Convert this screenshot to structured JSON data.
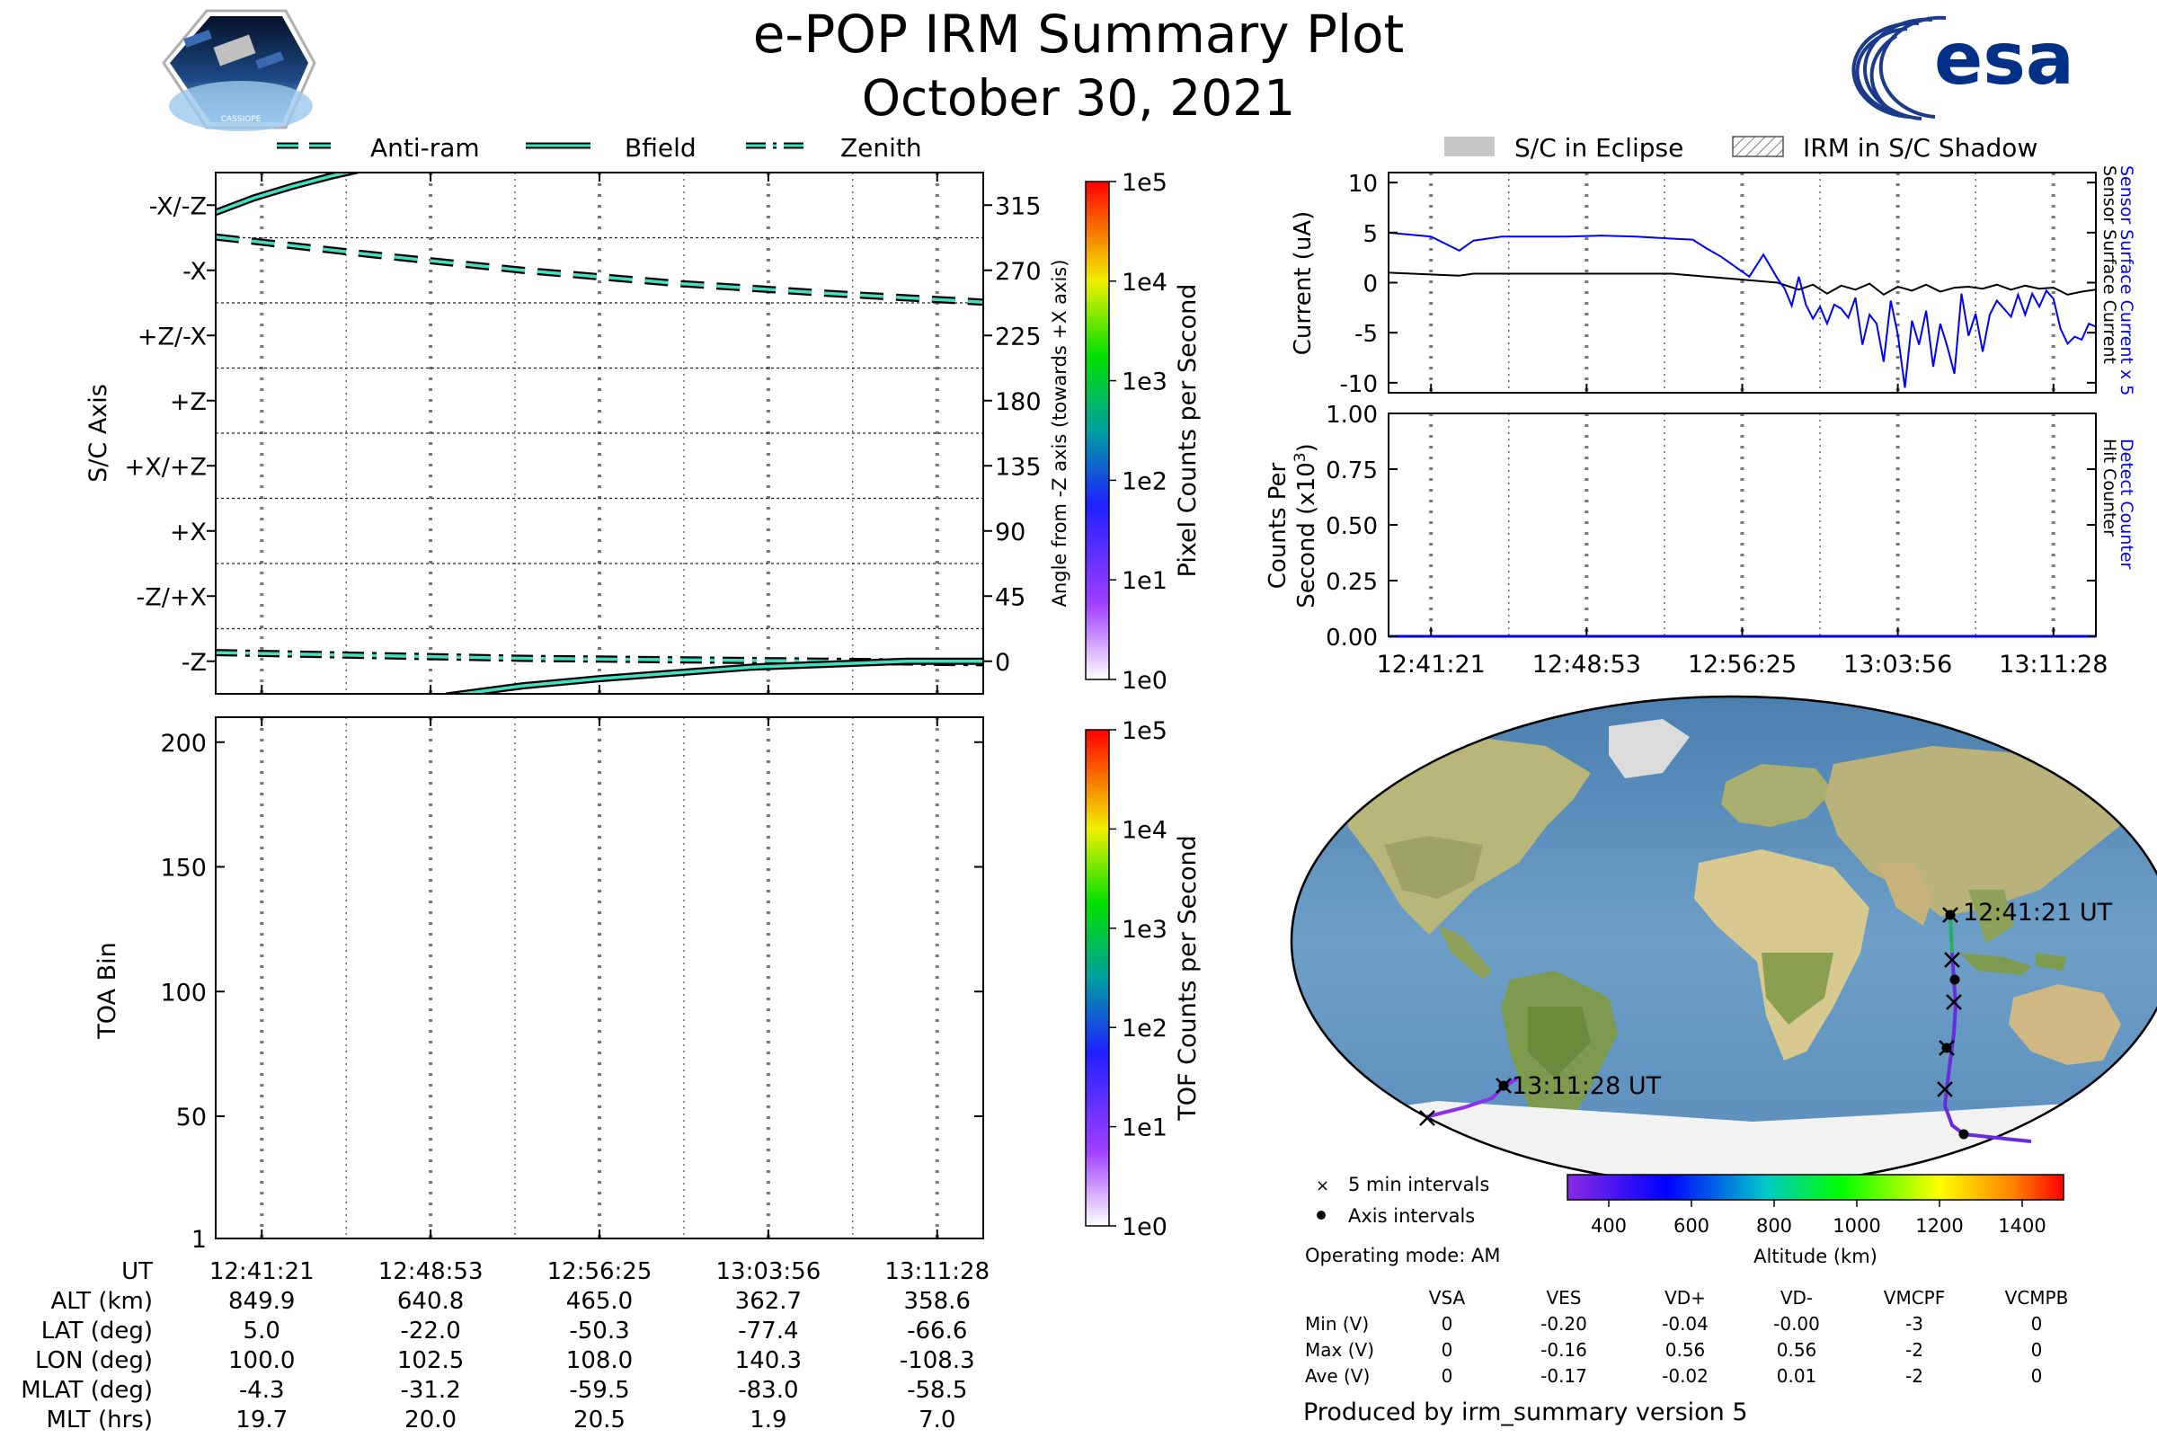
{
  "header": {
    "title": "e-POP IRM Summary Plot",
    "date": "October 30, 2021",
    "mission_logo_text": "CASSIOPE",
    "esa_logo_text": "esa"
  },
  "legend_top_left": [
    {
      "label": "Anti-ram",
      "style": "dashed"
    },
    {
      "label": "Bfield",
      "style": "solid"
    },
    {
      "label": "Zenith",
      "style": "dashdot"
    }
  ],
  "legend_top_right": [
    {
      "label": "S/C in Eclipse",
      "swatch": "gray"
    },
    {
      "label": "IRM in S/C Shadow",
      "swatch": "hatched"
    }
  ],
  "colors": {
    "trace_outline": "#000000",
    "trace_fill": "#40e0c0",
    "sensor_current": "#0000ff",
    "hit_counter": "#000000"
  },
  "time_ticks": [
    "12:41:21",
    "12:48:53",
    "12:56:25",
    "13:03:56",
    "13:11:28"
  ],
  "chart_data": [
    {
      "id": "sc_axis",
      "type": "line",
      "ylabel": "S/C Axis",
      "y2label": "Angle from -Z axis (towards +X axis)",
      "axis_labels": [
        "-X/-Z",
        "-X",
        "+Z/-X",
        "+Z",
        "+X/+Z",
        "+X",
        "-Z/+X",
        "-Z"
      ],
      "y2_ticks": [
        "315",
        "270",
        "225",
        "180",
        "135",
        "90",
        "45",
        "0"
      ],
      "ylim": [
        -22.5,
        337.5
      ],
      "x": [
        0,
        0.2,
        0.4,
        0.6,
        0.8,
        1.0
      ],
      "series": [
        {
          "name": "Anti-ram",
          "style": "dashed",
          "values": [
            293,
            281,
            270,
            261,
            254,
            248
          ]
        },
        {
          "name": "Zenith",
          "style": "dashdot",
          "values": [
            6,
            4,
            2,
            1,
            0,
            -1
          ]
        },
        {
          "name": "Bfield",
          "style": "solid",
          "x": [
            0,
            0.05,
            0.1,
            0.15,
            0.2,
            0.25,
            0.3
          ],
          "values": [
            310,
            320,
            328,
            335,
            341,
            345,
            349
          ]
        },
        {
          "name": "Bfield",
          "style": "solid",
          "x": [
            0.3,
            0.4,
            0.5,
            0.6,
            0.7,
            0.8,
            0.9,
            1.0
          ],
          "values": [
            -24,
            -17,
            -12,
            -8,
            -4,
            -2,
            0,
            0
          ]
        }
      ],
      "colorbar": {
        "label": "Pixel Counts per Second",
        "ticks": [
          "1e5",
          "1e4",
          "1e3",
          "1e2",
          "1e1",
          "1e0"
        ]
      }
    },
    {
      "id": "toa",
      "type": "heatmap",
      "ylabel": "TOA Bin",
      "ylim": [
        1,
        210
      ],
      "y_ticks": [
        "1",
        "50",
        "100",
        "150",
        "200"
      ],
      "colorbar": {
        "label": "TOF Counts per Second",
        "ticks": [
          "1e5",
          "1e4",
          "1e3",
          "1e2",
          "1e1",
          "1e0"
        ]
      }
    },
    {
      "id": "current",
      "type": "line",
      "ylabel": "Current (uA)",
      "ylim": [
        -11,
        11
      ],
      "y_ticks": [
        "10",
        "5",
        "0",
        "-5",
        "-10"
      ],
      "right_labels": [
        {
          "text": "Sensor Surface Current x 5",
          "color": "#0000ff"
        },
        {
          "text": "Sensor Surface Current",
          "color": "#000000"
        }
      ],
      "series": [
        {
          "name": "Sensor Surface Current x 5",
          "color": "#0000ff",
          "x": [
            0,
            0.06,
            0.1,
            0.12,
            0.16,
            0.2,
            0.25,
            0.3,
            0.35,
            0.4,
            0.43,
            0.45,
            0.47,
            0.49,
            0.51,
            0.53,
            0.55,
            0.56,
            0.57,
            0.58,
            0.59,
            0.6,
            0.61,
            0.62,
            0.63,
            0.64,
            0.65,
            0.66,
            0.67,
            0.68,
            0.69,
            0.7,
            0.71,
            0.72,
            0.73,
            0.74,
            0.75,
            0.76,
            0.77,
            0.78,
            0.79,
            0.8,
            0.81,
            0.82,
            0.83,
            0.84,
            0.85,
            0.86,
            0.87,
            0.88,
            0.89,
            0.9,
            0.91,
            0.92,
            0.93,
            0.94,
            0.95,
            0.96,
            0.97,
            0.98,
            0.99,
            1.0
          ],
          "values": [
            5,
            4.6,
            3.2,
            4.2,
            4.6,
            4.6,
            4.6,
            4.7,
            4.6,
            4.4,
            4.3,
            3.4,
            2.6,
            1.6,
            0.6,
            2.8,
            0.4,
            -0.6,
            -2.3,
            0.6,
            -2.2,
            -3.6,
            -2.4,
            -4.1,
            -2.2,
            -2.6,
            -3.5,
            -1.5,
            -6.2,
            -3.2,
            -4.1,
            -7.9,
            -1.8,
            -5.2,
            -10.5,
            -3.8,
            -6.2,
            -2.8,
            -8.4,
            -4.1,
            -6.4,
            -9.1,
            -1.1,
            -5.3,
            -3.1,
            -6.9,
            -3.2,
            -1.8,
            -2.6,
            -3.4,
            -1.2,
            -3.2,
            -1.1,
            -2.4,
            -0.8,
            -1.6,
            -4.6,
            -6.1,
            -5.4,
            -5.7,
            -4.1,
            -4.4
          ]
        },
        {
          "name": "Sensor Surface Current",
          "color": "#000000",
          "x": [
            0,
            0.1,
            0.12,
            0.2,
            0.3,
            0.4,
            0.45,
            0.5,
            0.55,
            0.58,
            0.6,
            0.62,
            0.64,
            0.66,
            0.68,
            0.7,
            0.72,
            0.74,
            0.76,
            0.78,
            0.8,
            0.82,
            0.84,
            0.86,
            0.88,
            0.9,
            0.92,
            0.94,
            0.96,
            0.98,
            1.0
          ],
          "values": [
            1,
            0.7,
            0.9,
            0.9,
            0.9,
            0.9,
            0.6,
            0.3,
            0,
            -0.7,
            -0.2,
            -1.1,
            -0.3,
            -0.7,
            -0.1,
            -1.2,
            -0.4,
            -0.8,
            -0.2,
            -0.9,
            -0.5,
            -0.4,
            -0.6,
            -0.2,
            -0.7,
            -0.3,
            -0.6,
            -0.5,
            -1.2,
            -0.9,
            -0.7
          ]
        }
      ]
    },
    {
      "id": "counts",
      "type": "line",
      "ylabel_line1": "Counts Per",
      "ylabel_line2": "Second (x10",
      "ylabel_sup": "3",
      "ylabel_close": ")",
      "ylim": [
        0,
        1
      ],
      "y_ticks": [
        "1.00",
        "0.75",
        "0.50",
        "0.25",
        "0.00"
      ],
      "right_labels": [
        {
          "text": "Detect Counter",
          "color": "#0000ff"
        },
        {
          "text": "Hit Counter",
          "color": "#000000"
        }
      ],
      "series": [
        {
          "name": "Detect Counter",
          "color": "#0000ff",
          "x": [
            0,
            1
          ],
          "values": [
            0,
            0
          ]
        },
        {
          "name": "Hit Counter",
          "color": "#000000",
          "x": [
            0,
            1
          ],
          "values": [
            0,
            0
          ]
        }
      ]
    }
  ],
  "ephemeris": {
    "rows": [
      {
        "label": "UT",
        "values": [
          "12:41:21",
          "12:48:53",
          "12:56:25",
          "13:03:56",
          "13:11:28"
        ]
      },
      {
        "label": "ALT (km)",
        "values": [
          "849.9",
          "640.8",
          "465.0",
          "362.7",
          "358.6"
        ]
      },
      {
        "label": "LAT (deg)",
        "values": [
          "5.0",
          "-22.0",
          "-50.3",
          "-77.4",
          "-66.6"
        ]
      },
      {
        "label": "LON (deg)",
        "values": [
          "100.0",
          "102.5",
          "108.0",
          "140.3",
          "-108.3"
        ]
      },
      {
        "label": "MLAT (deg)",
        "values": [
          "-4.3",
          "-31.2",
          "-59.5",
          "-83.0",
          "-58.5"
        ]
      },
      {
        "label": "MLT (hrs)",
        "values": [
          "19.7",
          "20.0",
          "20.5",
          "1.9",
          "7.0"
        ]
      }
    ]
  },
  "map": {
    "start_label": "12:41:21 UT",
    "end_label": "13:11:28 UT",
    "legend_cross": "5 min intervals",
    "legend_dot": "Axis intervals"
  },
  "altitude_bar": {
    "label": "Altitude (km)",
    "min": 300,
    "max": 1500,
    "ticks": [
      "400",
      "600",
      "800",
      "1000",
      "1200",
      "1400"
    ]
  },
  "operating_mode": "Operating mode: AM",
  "voltage_table": {
    "columns": [
      "VSA",
      "VES",
      "VD+",
      "VD-",
      "VMCPF",
      "VCMPB"
    ],
    "rows": [
      {
        "label": "Min (V)",
        "values": [
          "0",
          "-0.20",
          "-0.04",
          "-0.00",
          "-3",
          "0"
        ]
      },
      {
        "label": "Max (V)",
        "values": [
          "0",
          "-0.16",
          "0.56",
          "0.56",
          "-2",
          "0"
        ]
      },
      {
        "label": "Ave (V)",
        "values": [
          "0",
          "-0.17",
          "-0.02",
          "0.01",
          "-2",
          "0"
        ]
      }
    ]
  },
  "footer": "Produced by irm_summary version 5"
}
